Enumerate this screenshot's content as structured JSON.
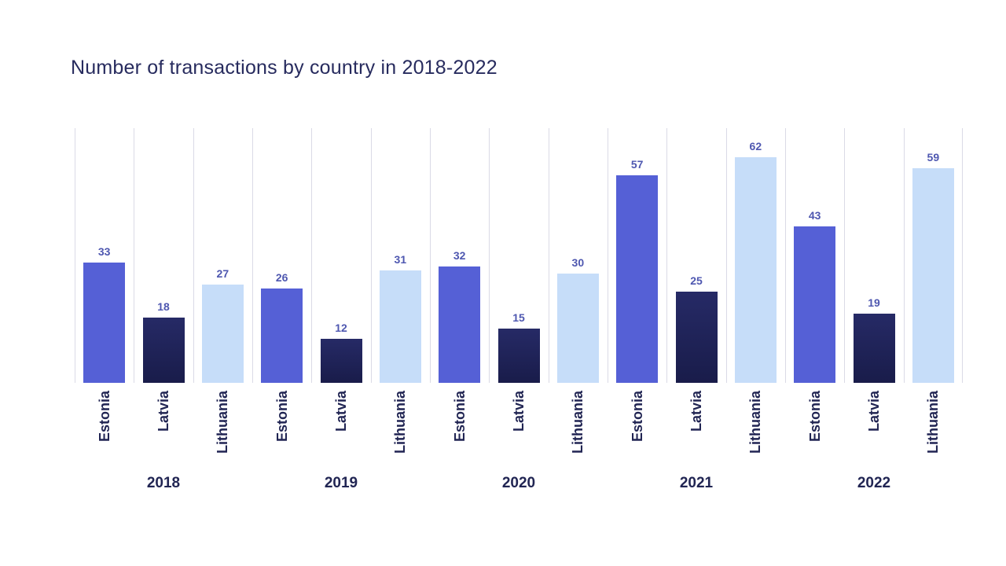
{
  "title": "Number of transactions by country in 2018-2022",
  "colors": {
    "estonia_bar": "#5560d6",
    "latvia_bar_top": "#262a66",
    "latvia_bar_bottom": "#191c4a",
    "lithuania_bar": "#c6ddf9",
    "gridline": "#dadae6",
    "title_text": "#272b5e",
    "axis_text": "#212553",
    "value_label_text": "#4e57b0"
  },
  "chart_data": {
    "type": "bar",
    "title": "Number of transactions by country in 2018-2022",
    "categories": [
      "2018",
      "2019",
      "2020",
      "2021",
      "2022"
    ],
    "series": [
      {
        "name": "Estonia",
        "values": [
          33,
          26,
          32,
          57,
          43
        ]
      },
      {
        "name": "Latvia",
        "values": [
          18,
          12,
          15,
          25,
          19
        ]
      },
      {
        "name": "Lithuania",
        "values": [
          27,
          31,
          30,
          62,
          59
        ]
      }
    ],
    "xlabel": "",
    "ylabel": "",
    "ylim": [
      0,
      70
    ],
    "grid": "vertical-only",
    "legend": "none",
    "bar_value_labels": true,
    "bar_category_labels_rotated_90": true
  }
}
